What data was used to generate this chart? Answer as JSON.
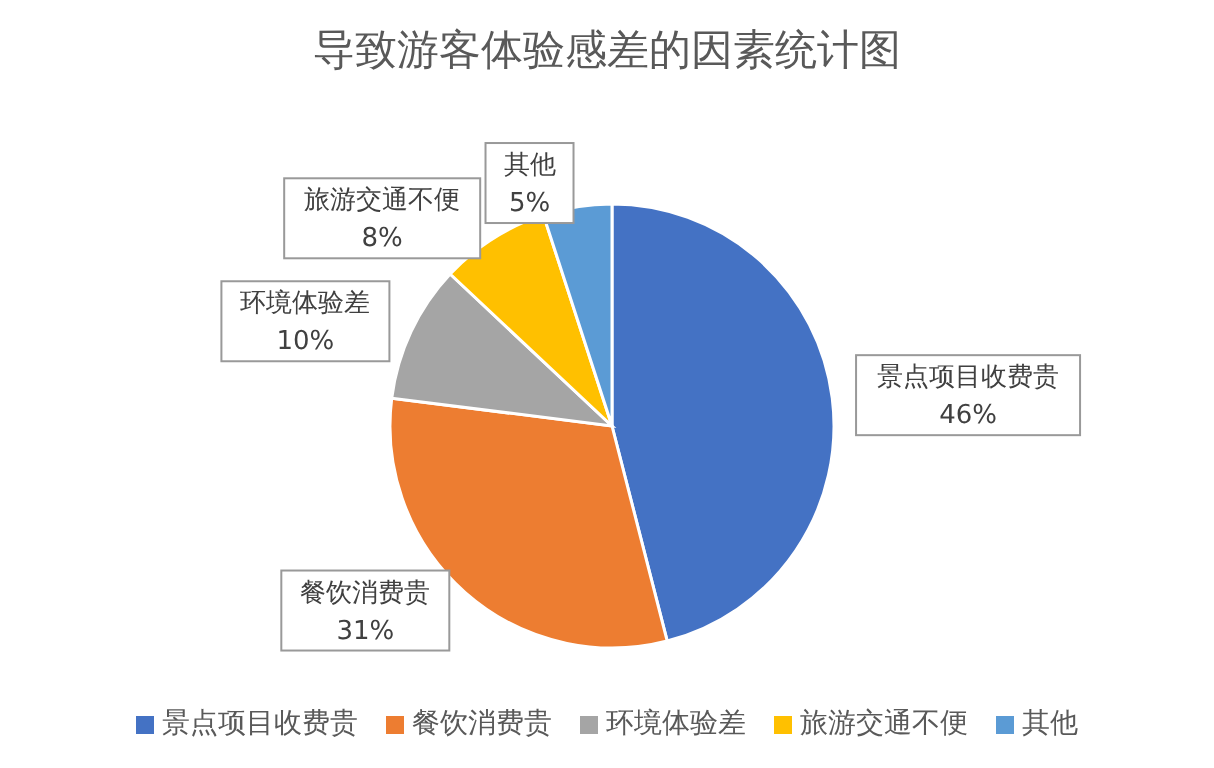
{
  "chart_data": {
    "type": "pie",
    "title": "导致游客体验感差的因素统计图",
    "categories": [
      "景点项目收费贵",
      "餐饮消费贵",
      "环境体验差",
      "旅游交通不便",
      "其他"
    ],
    "values": [
      46,
      31,
      10,
      8,
      5
    ],
    "colors": [
      "#4472c4",
      "#ed7d31",
      "#a5a5a5",
      "#ffc000",
      "#5b9bd5"
    ],
    "value_labels": [
      "46%",
      "31%",
      "10%",
      "8%",
      "5%"
    ],
    "legend": "bottom"
  }
}
